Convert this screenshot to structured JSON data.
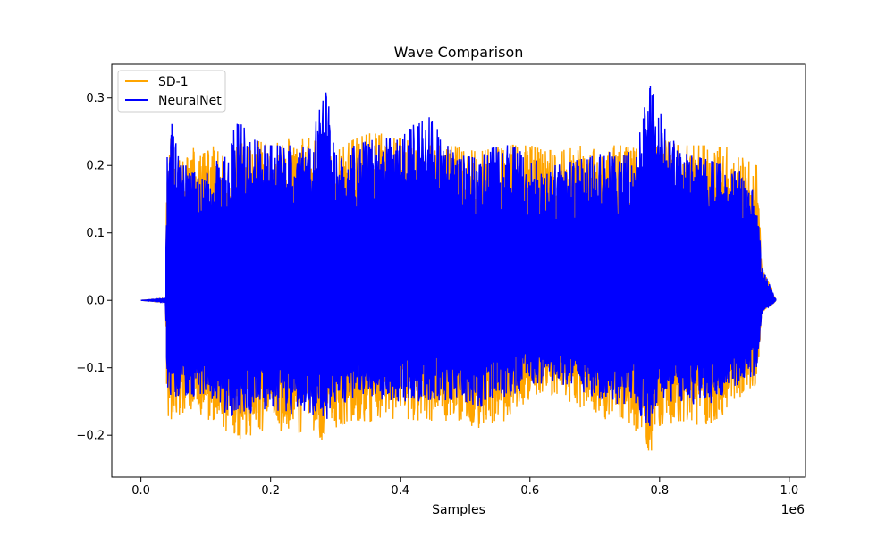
{
  "chart_data": {
    "type": "line",
    "title": "Wave Comparison",
    "xlabel": "Samples",
    "ylabel": "",
    "x_offset_label": "1e6",
    "xlim": [
      -45000,
      1025000
    ],
    "ylim": [
      -0.262,
      0.35
    ],
    "x_ticks": [
      0,
      200000,
      400000,
      600000,
      800000,
      1000000
    ],
    "x_tick_labels": [
      "0.0",
      "0.2",
      "0.4",
      "0.6",
      "0.8",
      "1.0"
    ],
    "y_ticks": [
      -0.2,
      -0.1,
      0.0,
      0.1,
      0.2,
      0.3
    ],
    "y_tick_labels": [
      "−0.2",
      "−0.1",
      "0.0",
      "0.1",
      "0.2",
      "0.3"
    ],
    "legend_position": "upper-left",
    "series": [
      {
        "name": "SD-1",
        "color": "#ffa500",
        "x": [
          0,
          38000,
          40000,
          46000,
          60000,
          75000,
          90000,
          110000,
          130000,
          150000,
          170000,
          200000,
          230000,
          260000,
          285000,
          300000,
          330000,
          360000,
          400000,
          440000,
          480000,
          520000,
          560000,
          600000,
          640000,
          680000,
          720000,
          760000,
          785000,
          800000,
          830000,
          870000,
          900000,
          930000,
          950000,
          958000,
          980000
        ],
        "envelope_upper": [
          0.0,
          0.003,
          0.19,
          0.24,
          0.21,
          0.23,
          0.22,
          0.23,
          0.21,
          0.23,
          0.24,
          0.23,
          0.24,
          0.24,
          0.23,
          0.22,
          0.24,
          0.25,
          0.24,
          0.23,
          0.23,
          0.22,
          0.23,
          0.23,
          0.22,
          0.23,
          0.23,
          0.23,
          0.22,
          0.24,
          0.23,
          0.23,
          0.23,
          0.21,
          0.2,
          0.05,
          0.0
        ],
        "envelope_lower": [
          0.0,
          -0.003,
          -0.18,
          -0.18,
          -0.17,
          -0.18,
          -0.17,
          -0.18,
          -0.2,
          -0.21,
          -0.2,
          -0.19,
          -0.2,
          -0.2,
          -0.21,
          -0.19,
          -0.18,
          -0.18,
          -0.18,
          -0.18,
          -0.18,
          -0.19,
          -0.18,
          -0.15,
          -0.14,
          -0.16,
          -0.18,
          -0.19,
          -0.23,
          -0.19,
          -0.18,
          -0.19,
          -0.17,
          -0.14,
          -0.13,
          -0.02,
          0.0
        ]
      },
      {
        "name": "NeuralNet",
        "color": "#0000ff",
        "x": [
          0,
          38000,
          40000,
          46000,
          60000,
          75000,
          90000,
          110000,
          130000,
          150000,
          170000,
          200000,
          230000,
          260000,
          285000,
          300000,
          330000,
          360000,
          400000,
          440000,
          480000,
          520000,
          560000,
          600000,
          640000,
          680000,
          720000,
          760000,
          785000,
          800000,
          830000,
          870000,
          900000,
          930000,
          950000,
          958000,
          980000
        ],
        "envelope_upper": [
          0.0,
          0.003,
          0.22,
          0.28,
          0.2,
          0.2,
          0.19,
          0.2,
          0.22,
          0.27,
          0.24,
          0.23,
          0.23,
          0.23,
          0.32,
          0.22,
          0.23,
          0.24,
          0.24,
          0.28,
          0.22,
          0.21,
          0.24,
          0.21,
          0.2,
          0.21,
          0.22,
          0.22,
          0.32,
          0.28,
          0.22,
          0.21,
          0.2,
          0.19,
          0.15,
          0.05,
          0.0
        ],
        "envelope_lower": [
          0.0,
          -0.003,
          -0.15,
          -0.15,
          -0.14,
          -0.15,
          -0.14,
          -0.15,
          -0.17,
          -0.18,
          -0.17,
          -0.16,
          -0.17,
          -0.17,
          -0.18,
          -0.16,
          -0.15,
          -0.15,
          -0.15,
          -0.15,
          -0.15,
          -0.16,
          -0.15,
          -0.13,
          -0.12,
          -0.14,
          -0.15,
          -0.16,
          -0.2,
          -0.16,
          -0.15,
          -0.16,
          -0.14,
          -0.12,
          -0.11,
          -0.02,
          0.0
        ]
      }
    ]
  }
}
